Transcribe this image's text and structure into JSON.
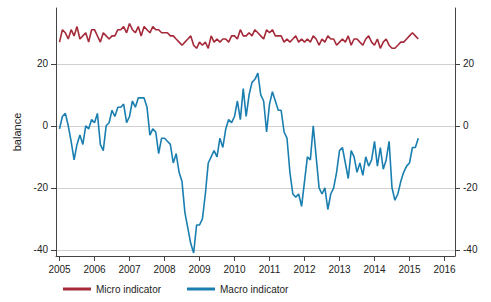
{
  "chart_data": {
    "type": "line",
    "y_label": "balance",
    "x": [
      2005.0,
      2005.083,
      2005.167,
      2005.25,
      2005.333,
      2005.417,
      2005.5,
      2005.583,
      2005.667,
      2005.75,
      2005.833,
      2005.917,
      2006.0,
      2006.083,
      2006.167,
      2006.25,
      2006.333,
      2006.417,
      2006.5,
      2006.583,
      2006.667,
      2006.75,
      2006.833,
      2006.917,
      2007.0,
      2007.083,
      2007.167,
      2007.25,
      2007.333,
      2007.417,
      2007.5,
      2007.583,
      2007.667,
      2007.75,
      2007.833,
      2007.917,
      2008.0,
      2008.083,
      2008.167,
      2008.25,
      2008.333,
      2008.417,
      2008.5,
      2008.583,
      2008.667,
      2008.75,
      2008.833,
      2008.917,
      2009.0,
      2009.083,
      2009.167,
      2009.25,
      2009.333,
      2009.417,
      2009.5,
      2009.583,
      2009.667,
      2009.75,
      2009.833,
      2009.917,
      2010.0,
      2010.083,
      2010.167,
      2010.25,
      2010.333,
      2010.417,
      2010.5,
      2010.583,
      2010.667,
      2010.75,
      2010.833,
      2010.917,
      2011.0,
      2011.083,
      2011.167,
      2011.25,
      2011.333,
      2011.417,
      2011.5,
      2011.583,
      2011.667,
      2011.75,
      2011.833,
      2011.917,
      2012.0,
      2012.083,
      2012.167,
      2012.25,
      2012.333,
      2012.417,
      2012.5,
      2012.583,
      2012.667,
      2012.75,
      2012.833,
      2012.917,
      2013.0,
      2013.083,
      2013.167,
      2013.25,
      2013.333,
      2013.417,
      2013.5,
      2013.583,
      2013.667,
      2013.75,
      2013.833,
      2013.917,
      2014.0,
      2014.083,
      2014.167,
      2014.25,
      2014.333,
      2014.417,
      2014.5,
      2014.583,
      2014.667,
      2014.75,
      2014.833,
      2014.917,
      2015.0,
      2015.083,
      2015.167,
      2015.25
    ],
    "series": [
      {
        "name": "Micro indicator",
        "color": "#a52a3a",
        "values": [
          27,
          31,
          30,
          28,
          31,
          29,
          32,
          28,
          29,
          30,
          27,
          31,
          31,
          29,
          27,
          30,
          29,
          28,
          29,
          29,
          31,
          31,
          32,
          30,
          33,
          31,
          30,
          32,
          29,
          32,
          31,
          30,
          32,
          31,
          31,
          30,
          30,
          30,
          29,
          29,
          28,
          27,
          26,
          27,
          28,
          29,
          26,
          25,
          27,
          26,
          27,
          25,
          29,
          27,
          28,
          27,
          28,
          28,
          27,
          29,
          29,
          28,
          31,
          29,
          29,
          30,
          29,
          31,
          30,
          29,
          28,
          31,
          30,
          31,
          29,
          29,
          29,
          27,
          28,
          27,
          28,
          29,
          27,
          28,
          27,
          28,
          27,
          29,
          28,
          26,
          28,
          27,
          29,
          28,
          28,
          26,
          27,
          28,
          27,
          29,
          26,
          28,
          28,
          27,
          26,
          28,
          29,
          27,
          26,
          28,
          25,
          27,
          28,
          26,
          25,
          25,
          26,
          27,
          27,
          28,
          29,
          30,
          29,
          28
        ]
      },
      {
        "name": "Macro indicator",
        "color": "#1a7fb0",
        "values": [
          -1,
          3,
          4,
          0,
          -5,
          -11,
          -6,
          -3,
          -6,
          0,
          -1,
          2,
          1,
          4,
          -6,
          -8,
          0,
          1,
          5,
          3,
          6,
          6,
          7,
          1,
          3,
          8,
          6,
          9,
          9,
          9,
          6,
          -3,
          -1,
          -2,
          -9,
          -4,
          -4,
          -5,
          -6,
          -12,
          -9,
          -15,
          -18,
          -28,
          -33,
          -38,
          -41,
          -32,
          -32,
          -30,
          -22,
          -12,
          -10,
          -8,
          -10,
          -4,
          -7,
          -1,
          2,
          1,
          3,
          8,
          2,
          12,
          3,
          10,
          14,
          15,
          17,
          10,
          8,
          -2,
          7,
          11,
          8,
          5,
          5,
          -2,
          -4,
          -15,
          -22,
          -23,
          -22,
          -26,
          -18,
          -10,
          -11,
          0,
          -10,
          -20,
          -22,
          -20,
          -27,
          -22,
          -20,
          -15,
          -8,
          -7,
          -12,
          -17,
          -8,
          -10,
          -15,
          -12,
          -16,
          -10,
          -13,
          -11,
          -5,
          -13,
          -7,
          -14,
          -11,
          -5,
          -20,
          -24,
          -22,
          -18,
          -15,
          -13,
          -12,
          -7,
          -7,
          -4
        ]
      }
    ],
    "xlim": [
      2004.9,
      2016.3
    ],
    "xticks": [
      2005,
      2006,
      2007,
      2008,
      2009,
      2010,
      2011,
      2012,
      2013,
      2014,
      2015,
      2016
    ],
    "ylim": [
      -42,
      38
    ],
    "yticks": [
      -40,
      -20,
      0,
      20
    ],
    "y2lim": [
      -42,
      38
    ],
    "y2ticks": [
      -40,
      -20,
      0,
      20
    ],
    "grid": true,
    "legend": "bottom left"
  }
}
